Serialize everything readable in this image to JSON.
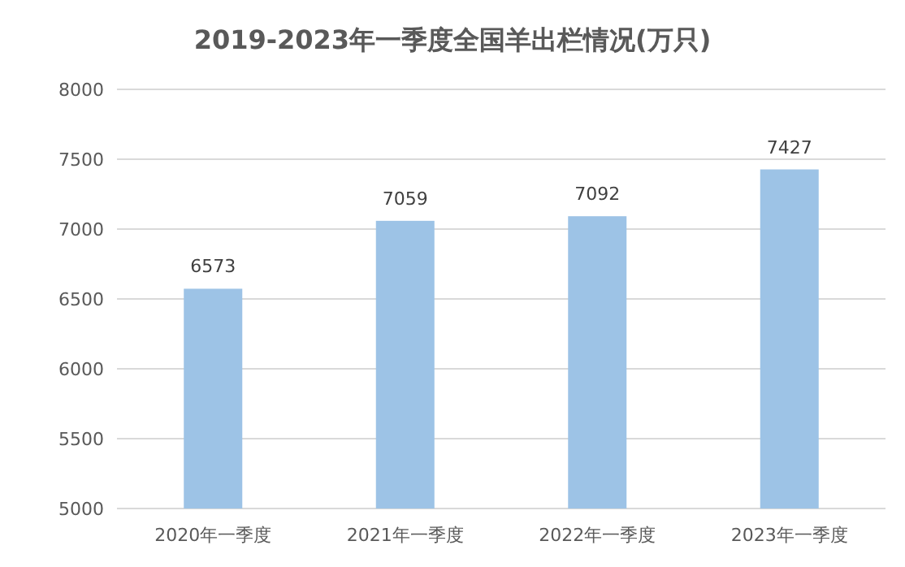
{
  "chart_data": {
    "type": "bar",
    "title": "2019-2023年一季度全国羊出栏情况(万只)",
    "categories": [
      "2020年一季度",
      "2021年一季度",
      "2022年一季度",
      "2023年一季度"
    ],
    "values": [
      6573,
      7059,
      7092,
      7427
    ],
    "color": "#9dc3e6",
    "ylim": [
      5000,
      8000
    ],
    "yticks": [
      5000,
      5500,
      6000,
      6500,
      7000,
      7500,
      8000
    ],
    "grid": "y",
    "data_labels": true
  }
}
